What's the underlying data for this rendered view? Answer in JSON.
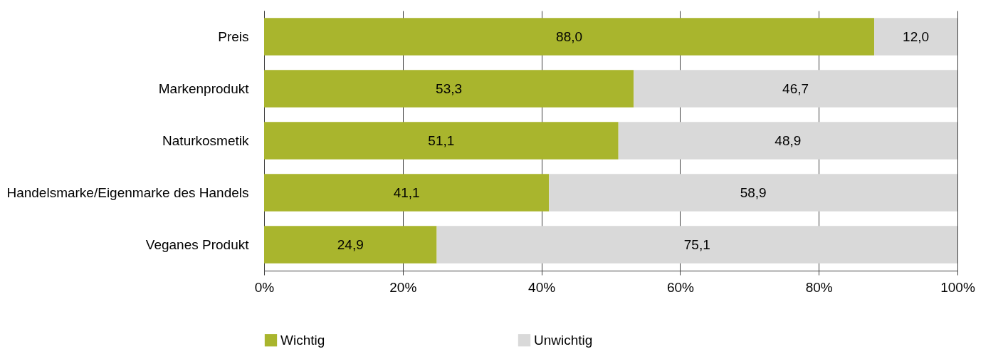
{
  "chart_data": {
    "type": "bar",
    "orientation": "horizontal",
    "stacked": true,
    "categories": [
      "Preis",
      "Markenprodukt",
      "Naturkosmetik",
      "Handelsmarke/Eigenmarke des Handels",
      "Veganes Produkt"
    ],
    "series": [
      {
        "name": "Wichtig",
        "color": "#a9b52d",
        "values": [
          88.0,
          53.3,
          51.1,
          41.1,
          24.9
        ],
        "value_labels": [
          "88,0",
          "53,3",
          "51,1",
          "41,1",
          "24,9"
        ]
      },
      {
        "name": "Unwichtig",
        "color": "#d9d9d9",
        "values": [
          12.0,
          46.7,
          48.9,
          58.9,
          75.1
        ],
        "value_labels": [
          "12,0",
          "46,7",
          "48,9",
          "58,9",
          "75,1"
        ]
      }
    ],
    "xlim": [
      0,
      100
    ],
    "xticks": [
      {
        "value": 0,
        "label": "0%"
      },
      {
        "value": 20,
        "label": "20%"
      },
      {
        "value": 40,
        "label": "40%"
      },
      {
        "value": 60,
        "label": "60%"
      },
      {
        "value": 80,
        "label": "80%"
      },
      {
        "value": 100,
        "label": "100%"
      }
    ],
    "grid": "x",
    "legend": "bottom"
  }
}
